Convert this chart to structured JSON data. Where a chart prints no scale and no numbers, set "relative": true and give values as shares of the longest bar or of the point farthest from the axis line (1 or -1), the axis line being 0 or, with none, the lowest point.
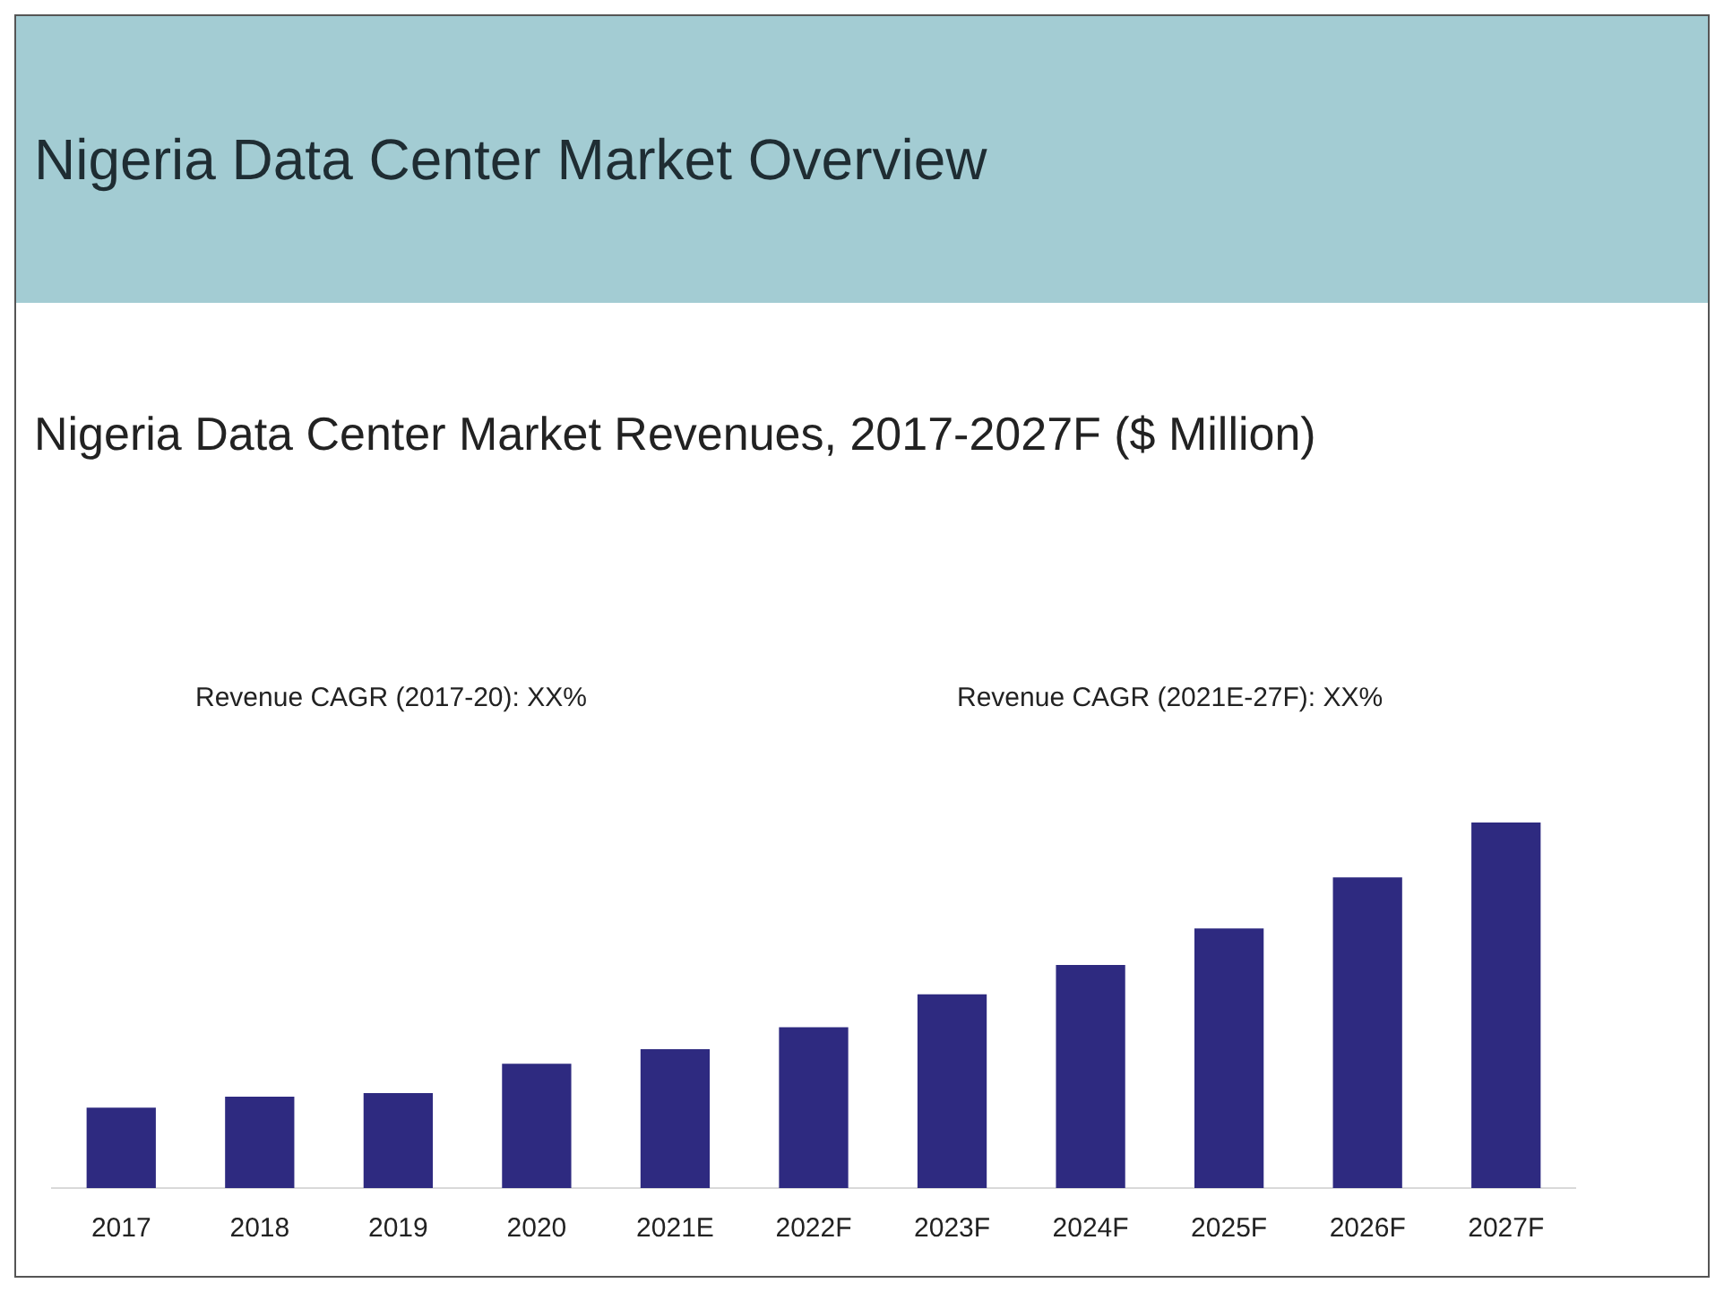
{
  "chart_data": {
    "type": "bar",
    "title": "Nigeria Data Center Market Overview",
    "subtitle": "Nigeria Data Center Market Revenues, 2017-2027F ($ Million)",
    "annotations": [
      "Revenue CAGR (2017-20): XX%",
      "Revenue CAGR (2021E-27F): XX%"
    ],
    "categories": [
      "2017",
      "2018",
      "2019",
      "2020",
      "2021E",
      "2022F",
      "2023F",
      "2024F",
      "2025F",
      "2026F",
      "2027F"
    ],
    "values": [
      0.22,
      0.25,
      0.26,
      0.34,
      0.38,
      0.44,
      0.53,
      0.61,
      0.71,
      0.85,
      1
    ],
    "color": "#2e2a80",
    "relative": true,
    "grid": false,
    "legend": false
  }
}
